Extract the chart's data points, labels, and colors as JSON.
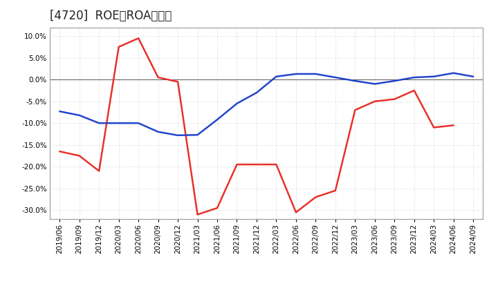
{
  "title": "[4720]  ROE、ROAの推移",
  "ylim": [
    -0.32,
    0.12
  ],
  "yticks": [
    -0.3,
    -0.25,
    -0.2,
    -0.15,
    -0.1,
    -0.05,
    0.0,
    0.05,
    0.1
  ],
  "dates": [
    "2019/06",
    "2019/09",
    "2019/12",
    "2020/03",
    "2020/06",
    "2020/09",
    "2020/12",
    "2021/03",
    "2021/06",
    "2021/09",
    "2021/12",
    "2022/03",
    "2022/06",
    "2022/09",
    "2022/12",
    "2023/03",
    "2023/06",
    "2023/09",
    "2023/12",
    "2024/03",
    "2024/06",
    "2024/09"
  ],
  "roe": [
    -0.165,
    -0.175,
    -0.21,
    0.075,
    0.095,
    0.005,
    -0.005,
    -0.31,
    -0.295,
    -0.195,
    -0.195,
    -0.195,
    -0.305,
    -0.27,
    -0.255,
    -0.07,
    -0.05,
    -0.045,
    -0.025,
    -0.11,
    -0.105,
    null
  ],
  "roa": [
    -0.073,
    -0.082,
    -0.1,
    -0.1,
    -0.1,
    -0.12,
    -0.128,
    -0.127,
    -0.092,
    -0.055,
    -0.03,
    0.007,
    0.013,
    0.013,
    0.005,
    -0.003,
    -0.01,
    -0.003,
    0.005,
    0.007,
    0.015,
    0.007
  ],
  "roe_color": "#e8312a",
  "roa_color": "#2244cc",
  "background_color": "#ffffff",
  "grid_color": "#bbbbbb",
  "title_fontsize": 12,
  "legend_fontsize": 10,
  "tick_fontsize": 7.5
}
